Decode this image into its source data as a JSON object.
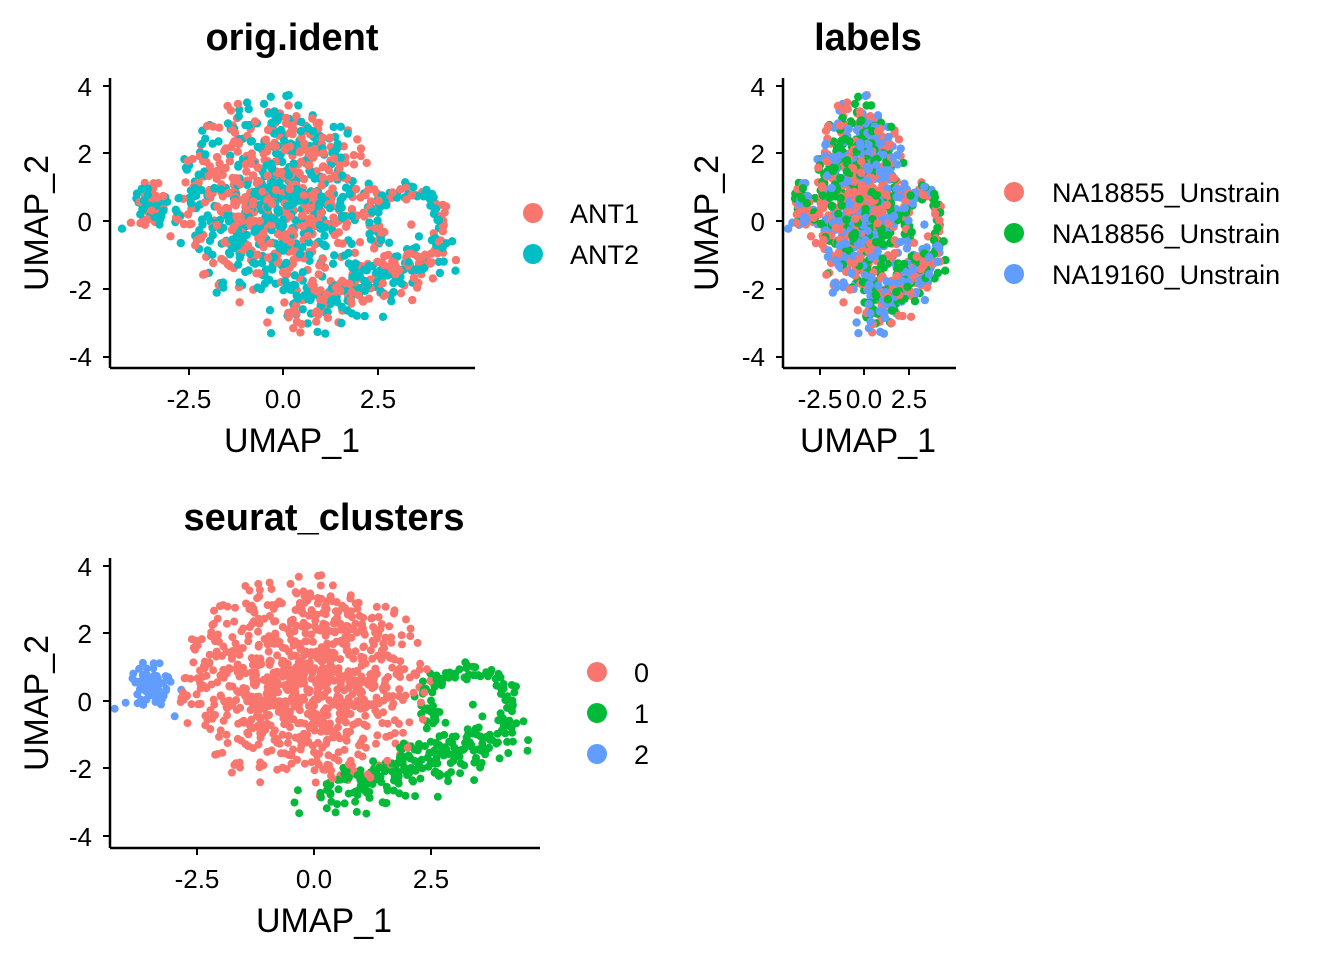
{
  "chart_data": [
    {
      "type": "scatter",
      "title": "orig.ident",
      "xlabel": "UMAP_1",
      "ylabel": "UMAP_2",
      "xlim": [
        -4.2,
        4.7
      ],
      "ylim": [
        -4.2,
        4.2
      ],
      "xticks": [
        "-2.5",
        "0.0",
        "2.5"
      ],
      "yticks": [
        "-4",
        "-2",
        "0",
        "2",
        "4"
      ],
      "grid": false,
      "legend_position": "right",
      "series": [
        {
          "name": "ANT1",
          "color": "#F8766D"
        },
        {
          "name": "ANT2",
          "color": "#00BFC4"
        }
      ]
    },
    {
      "type": "scatter",
      "title": "labels",
      "xlabel": "UMAP_1",
      "ylabel": "UMAP_2",
      "xlim": [
        -4.2,
        4.7
      ],
      "ylim": [
        -4.2,
        4.2
      ],
      "xticks": [
        "-2.5",
        "0.0",
        "2.5"
      ],
      "yticks": [
        "-4",
        "-2",
        "0",
        "2",
        "4"
      ],
      "grid": false,
      "legend_position": "right",
      "series": [
        {
          "name": "NA18855_Unstrain",
          "color": "#F8766D"
        },
        {
          "name": "NA18856_Unstrain",
          "color": "#00BA38"
        },
        {
          "name": "NA19160_Unstrain",
          "color": "#619CFF"
        }
      ]
    },
    {
      "type": "scatter",
      "title": "seurat_clusters",
      "xlabel": "UMAP_1",
      "ylabel": "UMAP_2",
      "xlim": [
        -4.2,
        4.7
      ],
      "ylim": [
        -4.2,
        4.2
      ],
      "xticks": [
        "-2.5",
        "0.0",
        "2.5"
      ],
      "yticks": [
        "-4",
        "-2",
        "0",
        "2",
        "4"
      ],
      "grid": false,
      "legend_position": "right",
      "series": [
        {
          "name": "0",
          "color": "#F8766D"
        },
        {
          "name": "1",
          "color": "#00BA38"
        },
        {
          "name": "2",
          "color": "#619CFF"
        }
      ]
    }
  ]
}
